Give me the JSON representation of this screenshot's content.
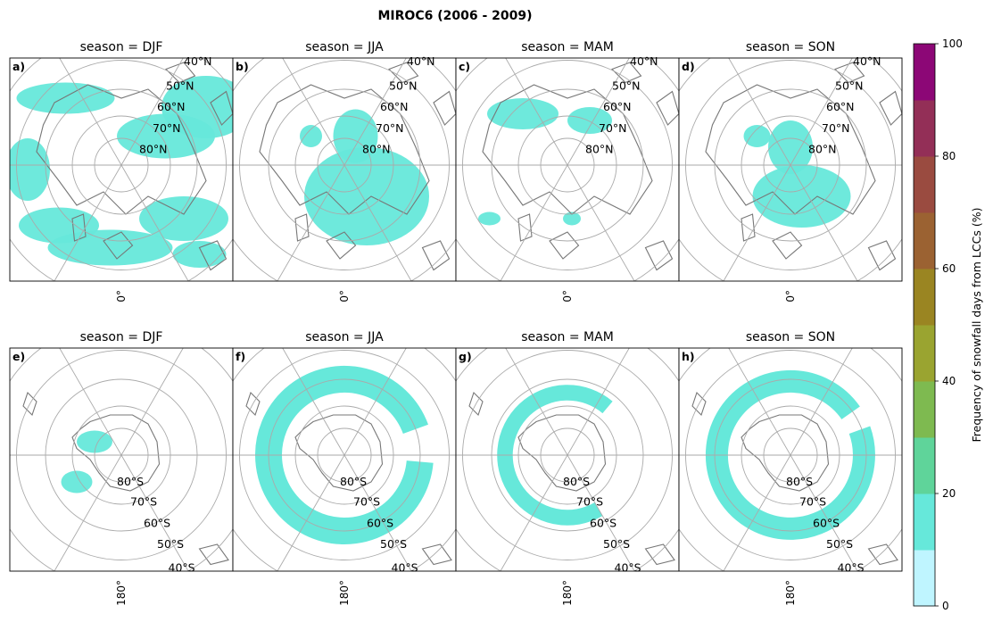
{
  "figure": {
    "title": "MIROC6 (2006 - 2009)"
  },
  "panels": [
    {
      "label": "a)",
      "title": "season = DJF",
      "hemisphere": "north",
      "lon_tick": "0°",
      "blobs": [
        [
          0.45,
          0.85,
          0.28,
          0.08
        ],
        [
          0.78,
          0.72,
          0.2,
          0.1
        ],
        [
          0.85,
          0.88,
          0.12,
          0.06
        ],
        [
          0.22,
          0.75,
          0.18,
          0.08
        ],
        [
          0.08,
          0.5,
          0.1,
          0.14
        ],
        [
          0.88,
          0.22,
          0.2,
          0.14
        ],
        [
          0.7,
          0.35,
          0.22,
          0.1
        ],
        [
          0.25,
          0.18,
          0.22,
          0.07
        ]
      ]
    },
    {
      "label": "b)",
      "title": "season = JJA",
      "hemisphere": "north",
      "lon_tick": "0°",
      "blobs": [
        [
          0.6,
          0.62,
          0.28,
          0.22
        ],
        [
          0.55,
          0.35,
          0.1,
          0.12
        ],
        [
          0.35,
          0.35,
          0.05,
          0.05
        ]
      ]
    },
    {
      "label": "c)",
      "title": "season = MAM",
      "hemisphere": "north",
      "lon_tick": "0°",
      "blobs": [
        [
          0.3,
          0.25,
          0.16,
          0.07
        ],
        [
          0.6,
          0.28,
          0.1,
          0.06
        ],
        [
          0.15,
          0.72,
          0.05,
          0.03
        ],
        [
          0.52,
          0.72,
          0.04,
          0.03
        ]
      ]
    },
    {
      "label": "d)",
      "title": "season = SON",
      "hemisphere": "north",
      "lon_tick": "0°",
      "blobs": [
        [
          0.55,
          0.62,
          0.22,
          0.14
        ],
        [
          0.5,
          0.4,
          0.1,
          0.12
        ],
        [
          0.35,
          0.35,
          0.06,
          0.05
        ]
      ]
    },
    {
      "label": "e)",
      "title": "season = DJF",
      "hemisphere": "south",
      "lon_tick": "180°",
      "blobs": [
        [
          0.3,
          0.6,
          0.07,
          0.05
        ],
        [
          0.38,
          0.42,
          0.08,
          0.05
        ]
      ]
    },
    {
      "label": "f)",
      "title": "season = JJA",
      "hemisphere": "south",
      "lon_tick": "180°",
      "ring": {
        "r": 0.34,
        "w": 0.12,
        "start": 95,
        "end": 430
      }
    },
    {
      "label": "g)",
      "title": "season = MAM",
      "hemisphere": "south",
      "lon_tick": "180°",
      "ring": {
        "r": 0.28,
        "w": 0.07,
        "start": 150,
        "end": 400
      }
    },
    {
      "label": "h)",
      "title": "season = SON",
      "hemisphere": "south",
      "lon_tick": "180°",
      "ring": {
        "r": 0.33,
        "w": 0.1,
        "start": 70,
        "end": 415
      }
    }
  ],
  "lat_labels_north": [
    "40°N",
    "50°N",
    "60°N",
    "70°N",
    "80°N"
  ],
  "lat_labels_south": [
    "80°S",
    "70°S",
    "60°S",
    "50°S",
    "40°S"
  ],
  "colorbar": {
    "label": "Frequency of snowfall days from LCCs (%)",
    "min": 0,
    "max": 100,
    "ticks": [
      "0",
      "20",
      "40",
      "60",
      "80",
      "100"
    ],
    "colors": [
      "#bff5ff",
      "#66e8da",
      "#5fd49a",
      "#7eba50",
      "#9aa430",
      "#9a8522",
      "#9b6232",
      "#9a4b40",
      "#932f57",
      "#8c0776"
    ]
  },
  "colors": {
    "snow": "#66e8da",
    "coast": "#777777",
    "grid": "#aaaaaa"
  }
}
